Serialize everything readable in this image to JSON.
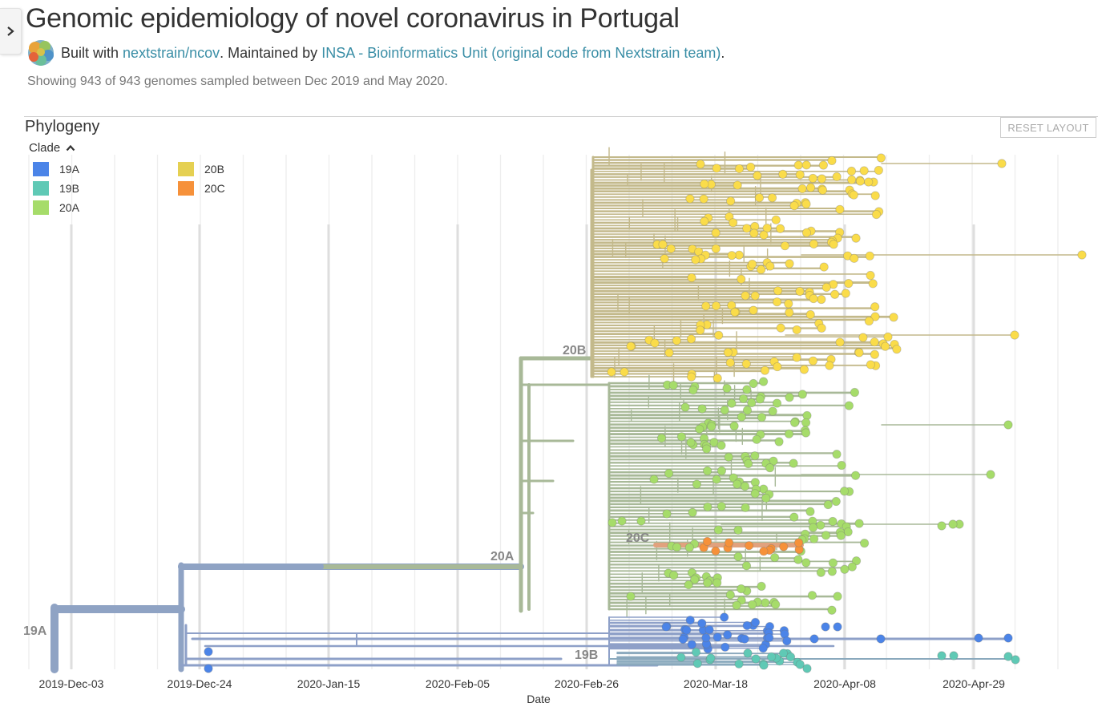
{
  "header": {
    "title": "Genomic epidemiology of novel coronavirus in Portugal",
    "built_with": "Built with",
    "built_link": "nextstrain/ncov",
    "maintained_by": ". Maintained by",
    "maintainer_link": "INSA - Bioinformatics Unit (original code from Nextstrain team)",
    "period": "."
  },
  "summary": "Showing 943 of 943 genomes sampled between Dec 2019 and May 2020.",
  "panel": {
    "title": "Phylogeny",
    "reset_label": "RESET LAYOUT"
  },
  "legend": {
    "title": "Clade",
    "items": [
      {
        "label": "19A",
        "color": "#4b84e8"
      },
      {
        "label": "19B",
        "color": "#5fc9b5"
      },
      {
        "label": "20A",
        "color": "#a6dc6a"
      },
      {
        "label": "20B",
        "color": "#e5d052"
      },
      {
        "label": "20C",
        "color": "#f6913a"
      }
    ]
  },
  "tree": {
    "axis_title": "Date",
    "ticks": [
      "2019-Dec-03",
      "2019-Dec-24",
      "2020-Jan-15",
      "2020-Feb-05",
      "2020-Feb-26",
      "2020-Mar-18",
      "2020-Apr-08",
      "2020-Apr-29"
    ],
    "clade_labels": [
      "19A",
      "20A",
      "20B",
      "20C",
      "19B"
    ],
    "branch_colors": {
      "root": "#8fa3c4",
      "a20": "#a8b998",
      "b20": "#c3b98b",
      "c20": "#e1a27e",
      "b19": "#8aa9bd",
      "a19": "#8ea0c8"
    },
    "tip_colors": {
      "a19": "#4b84e8",
      "b19": "#5fc9b5",
      "a20": "#a6dc6a",
      "b20": "#fadc4a",
      "c20": "#f6913a"
    }
  }
}
